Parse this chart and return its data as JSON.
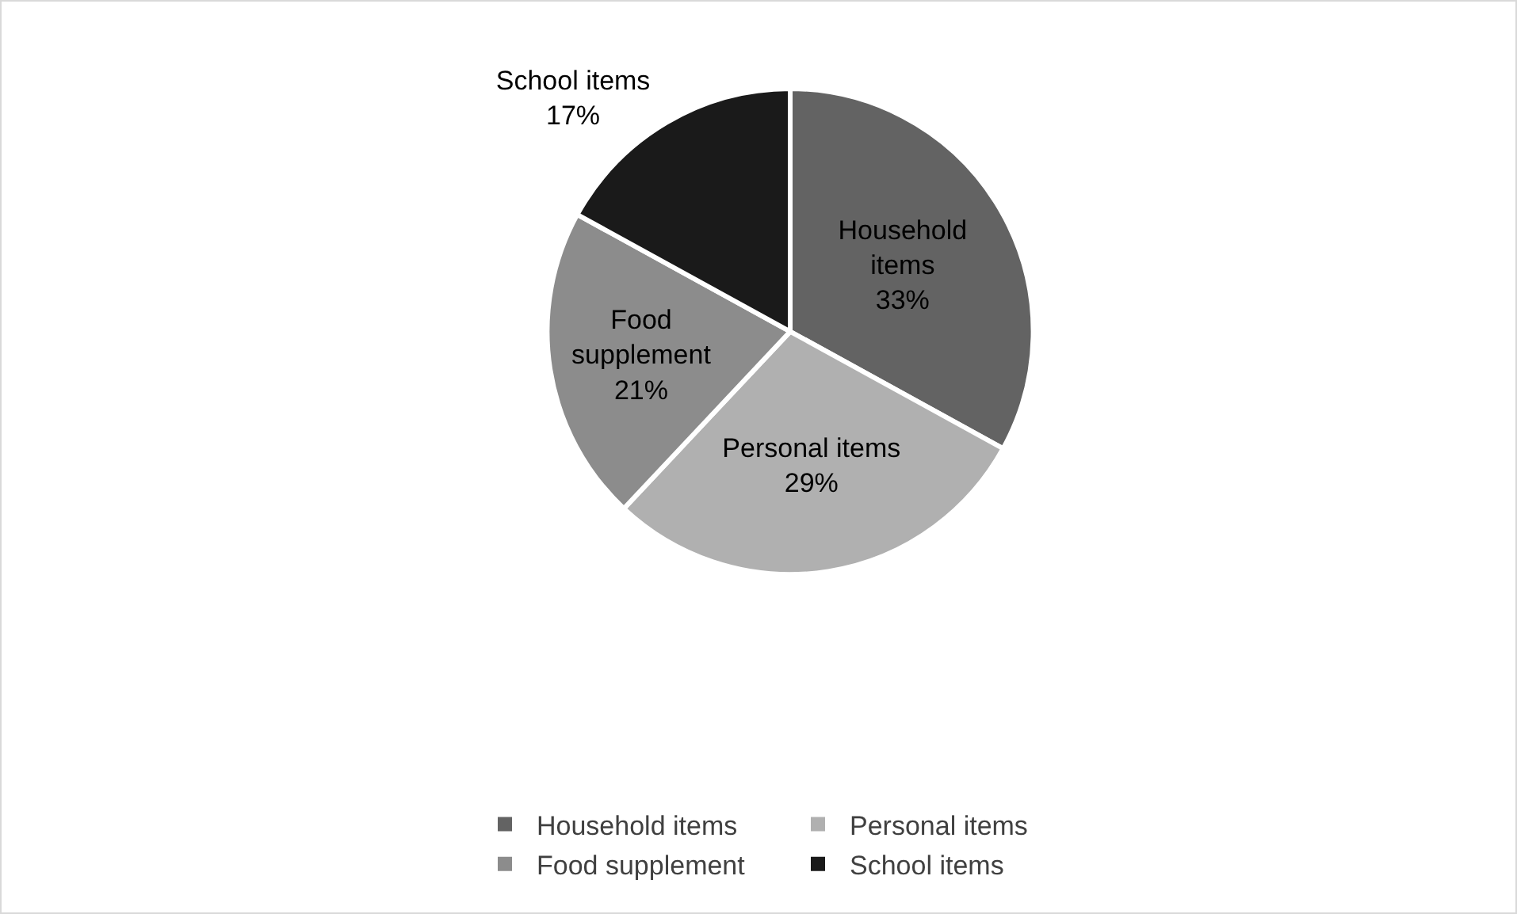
{
  "chart_data": {
    "type": "pie",
    "categories": [
      "Household items",
      "Personal items",
      "Food supplement",
      "School items"
    ],
    "values": [
      33,
      29,
      21,
      17
    ],
    "colors": [
      "#636363",
      "#b0b0b0",
      "#8c8c8c",
      "#1a1a1a"
    ],
    "value_labels": [
      "33%",
      "29%",
      "21%",
      "17%"
    ],
    "legend": "bottom"
  }
}
